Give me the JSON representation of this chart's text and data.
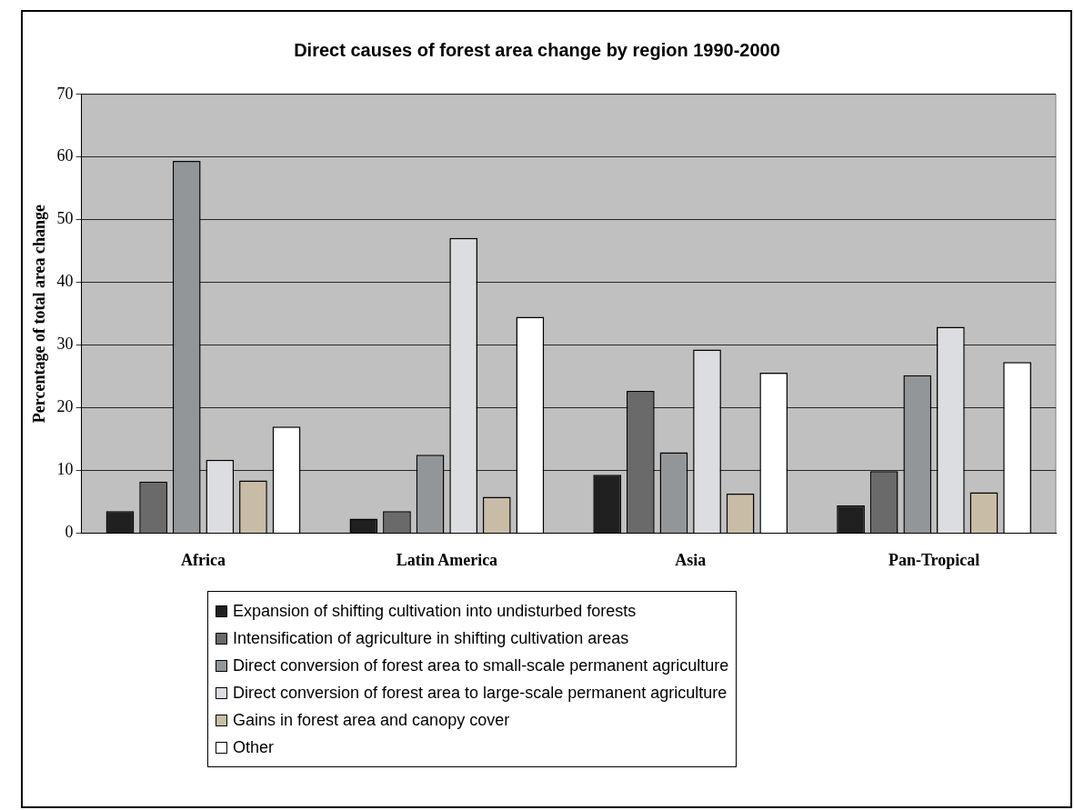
{
  "chart_data": {
    "type": "bar",
    "title": "Direct causes of forest area change by region 1990-2000",
    "ylabel": "Percentage of total area change",
    "categories": [
      "Africa",
      "Latin America",
      "Asia",
      "Pan-Tropical"
    ],
    "series": [
      {
        "name": "Expansion of shifting cultivation into undisturbed forests",
        "color": "#202020",
        "values": [
          3.5,
          2.3,
          9.3,
          4.4
        ]
      },
      {
        "name": "Intensification of agriculture in shifting cultivation areas",
        "color": "#6a6a6a",
        "values": [
          8.2,
          3.5,
          22.7,
          9.9
        ]
      },
      {
        "name": "Direct conversion of forest area to small-scale permanent agriculture",
        "color": "#939699",
        "values": [
          59.4,
          12.5,
          12.9,
          25.2
        ]
      },
      {
        "name": "Direct conversion of forest area to large-scale permanent agriculture",
        "color": "#dcdde0",
        "values": [
          11.7,
          47.1,
          29.3,
          32.9
        ]
      },
      {
        "name": "Gains in forest area and canopy cover",
        "color": "#c9bca6",
        "values": [
          8.4,
          5.8,
          6.3,
          6.5
        ]
      },
      {
        "name": "Other",
        "color": "#ffffff",
        "values": [
          17.0,
          34.5,
          25.6,
          27.3
        ]
      }
    ],
    "ylim": [
      0,
      70
    ],
    "yticks": [
      0,
      10,
      20,
      30,
      40,
      50,
      60,
      70
    ],
    "grid": "y",
    "legend": "bottom"
  }
}
